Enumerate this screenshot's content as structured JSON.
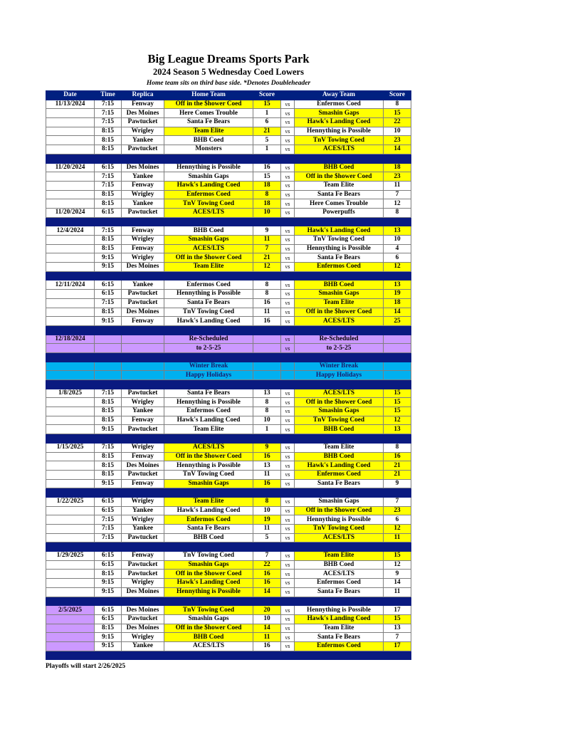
{
  "header": {
    "title": "Big League Dreams Sports Park",
    "subtitle": "2024 Season 5 Wednesday Coed Lowers",
    "note": "Home team sits on third base side.  *Denotes Doubleheader"
  },
  "columns": [
    "Date",
    "Time",
    "Replica",
    "Home Team",
    "Score",
    "",
    "Away Team",
    "Score"
  ],
  "vs_label": "vs",
  "colors": {
    "header": "#002080",
    "separator": "#0a1a80",
    "winner": "#ffff00",
    "rescheduled": "#cc99ff",
    "winter": "#00b0f0"
  },
  "sections": [
    {
      "type": "games",
      "games": [
        {
          "date": "11/13/2024",
          "time": "7:15",
          "replica": "Fenway",
          "home": "Off in the $hower Coed",
          "home_score": "15",
          "away": "Enfermos Coed",
          "away_score": "8",
          "winner": "home"
        },
        {
          "date": "",
          "time": "7:15",
          "replica": "Des Moines",
          "home": "Here Comes Trouble",
          "home_score": "1",
          "away": "Smashin Gaps",
          "away_score": "15",
          "winner": "away"
        },
        {
          "date": "",
          "time": "7:15",
          "replica": "Pawtucket",
          "home": "Santa Fe Bears",
          "home_score": "6",
          "away": "Hawk's Landing Coed",
          "away_score": "22",
          "winner": "away"
        },
        {
          "date": "",
          "time": "8:15",
          "replica": "Wrigley",
          "home": "Team Elite",
          "home_score": "21",
          "away": "Hennything is Possible",
          "away_score": "10",
          "winner": "home"
        },
        {
          "date": "",
          "time": "8:15",
          "replica": "Yankee",
          "home": "BHB Coed",
          "home_score": "5",
          "away": "TnV Towing Coed",
          "away_score": "23",
          "winner": "away"
        },
        {
          "date": "",
          "time": "8:15",
          "replica": "Pawtucket",
          "home": "Monsters",
          "home_score": "1",
          "away": "ACES/LTS",
          "away_score": "14",
          "winner": "away"
        }
      ]
    },
    {
      "type": "games",
      "games": [
        {
          "date": "11/20/2024",
          "time": "6:15",
          "replica": "Des Moines",
          "home": "Hennything is Possible",
          "home_score": "16",
          "away": "BHB Coed",
          "away_score": "18",
          "winner": "away"
        },
        {
          "date": "",
          "time": "7:15",
          "replica": "Yankee",
          "home": "Smashin Gaps",
          "home_score": "15",
          "away": "Off in the $hower Coed",
          "away_score": "23",
          "winner": "away"
        },
        {
          "date": "",
          "time": "7:15",
          "replica": "Fenway",
          "home": "Hawk's Landing Coed",
          "home_score": "18",
          "away": "Team Elite",
          "away_score": "11",
          "winner": "home"
        },
        {
          "date": "",
          "time": "8:15",
          "replica": "Wrigley",
          "home": "Enfermos Coed",
          "home_score": "8",
          "away": "Santa Fe Bears",
          "away_score": "7",
          "winner": "home"
        },
        {
          "date": "",
          "time": "8:15",
          "replica": "Yankee",
          "home": "TnV Towing Coed",
          "home_score": "18",
          "away": "Here Comes Trouble",
          "away_score": "12",
          "winner": "home"
        },
        {
          "date": "11/20/2024",
          "time": "6:15",
          "replica": "Pawtucket",
          "home": "ACES/LTS",
          "home_score": "10",
          "away": "Powerpuffs",
          "away_score": "8",
          "winner": "home"
        }
      ]
    },
    {
      "type": "games",
      "games": [
        {
          "date": "12/4/2024",
          "time": "7:15",
          "replica": "Fenway",
          "home": "BHB Coed",
          "home_score": "9",
          "away": "Hawk's Landing Coed",
          "away_score": "13",
          "winner": "away"
        },
        {
          "date": "",
          "time": "8:15",
          "replica": "Wrigley",
          "home": "Smashin Gaps",
          "home_score": "11",
          "away": "TnV Towing Coed",
          "away_score": "10",
          "winner": "home"
        },
        {
          "date": "",
          "time": "8:15",
          "replica": "Fenway",
          "home": "ACES/LTS",
          "home_score": "7",
          "away": "Hennything is Possible",
          "away_score": "4",
          "winner": "home"
        },
        {
          "date": "",
          "time": "9:15",
          "replica": "Wrigley",
          "home": "Off in the $hower Coed",
          "home_score": "21",
          "away": "Santa Fe Bears",
          "away_score": "6",
          "winner": "home"
        },
        {
          "date": "",
          "time": "9:15",
          "replica": "Des Moines",
          "home": "Team Elite",
          "home_score": "12",
          "away": "Enfermos Coed",
          "away_score": "12",
          "winner": "both"
        }
      ]
    },
    {
      "type": "games",
      "games": [
        {
          "date": "12/11/2024",
          "time": "6:15",
          "replica": "Yankee",
          "home": "Enfermos Coed",
          "home_score": "8",
          "away": "BHB Coed",
          "away_score": "13",
          "winner": "away"
        },
        {
          "date": "",
          "time": "6:15",
          "replica": "Pawtucket",
          "home": "Hennything is Possible",
          "home_score": "8",
          "away": "Smashin Gaps",
          "away_score": "19",
          "winner": "away"
        },
        {
          "date": "",
          "time": "7:15",
          "replica": "Pawtucket",
          "home": "Santa Fe Bears",
          "home_score": "16",
          "away": "Team Elite",
          "away_score": "18",
          "winner": "away"
        },
        {
          "date": "",
          "time": "8:15",
          "replica": "Des Moines",
          "home": "TnV Towing Coed",
          "home_score": "11",
          "away": "Off in the $hower Coed",
          "away_score": "14",
          "winner": "away"
        },
        {
          "date": "",
          "time": "9:15",
          "replica": "Fenway",
          "home": "Hawk's Landing Coed",
          "home_score": "16",
          "away": "ACES/LTS",
          "away_score": "25",
          "winner": "away"
        }
      ]
    },
    {
      "type": "rescheduled",
      "rows": [
        {
          "date": "12/18/2024",
          "home": "Re-Scheduled",
          "away": "Re-Scheduled",
          "vs": "vs"
        },
        {
          "date": "",
          "home": "to 2-5-25",
          "away": "to 2-5-25",
          "vs": "vs"
        }
      ]
    },
    {
      "type": "winter",
      "rows": [
        {
          "date": "",
          "home": "Winter Break",
          "away": "Winter Break",
          "vs": ""
        },
        {
          "date": "",
          "home": "Happy Holidays",
          "away": "Happy Holidays",
          "vs": ""
        }
      ]
    },
    {
      "type": "games",
      "games": [
        {
          "date": "1/8/2025",
          "time": "7:15",
          "replica": "Pawtucket",
          "home": "Santa Fe Bears",
          "home_score": "13",
          "away": "ACES/LTS",
          "away_score": "15",
          "winner": "away"
        },
        {
          "date": "",
          "time": "8:15",
          "replica": "Wrigley",
          "home": "Hennything is Possible",
          "home_score": "8",
          "away": "Off in the $hower Coed",
          "away_score": "15",
          "winner": "away"
        },
        {
          "date": "",
          "time": "8:15",
          "replica": "Yankee",
          "home": "Enfermos Coed",
          "home_score": "8",
          "away": "Smashin Gaps",
          "away_score": "15",
          "winner": "away"
        },
        {
          "date": "",
          "time": "8:15",
          "replica": "Fenway",
          "home": "Hawk's Landing Coed",
          "home_score": "10",
          "away": "TnV Towing Coed",
          "away_score": "12",
          "winner": "away"
        },
        {
          "date": "",
          "time": "9:15",
          "replica": "Pawtucket",
          "home": "Team Elite",
          "home_score": "1",
          "away": "BHB Coed",
          "away_score": "13",
          "winner": "away"
        }
      ]
    },
    {
      "type": "games",
      "games": [
        {
          "date": "1/15/2025",
          "time": "7:15",
          "replica": "Wrigley",
          "home": "ACES/LTS",
          "home_score": "9",
          "away": "Team Elite",
          "away_score": "8",
          "winner": "home"
        },
        {
          "date": "",
          "time": "8:15",
          "replica": "Fenway",
          "home": "Off in the $hower Coed",
          "home_score": "16",
          "away": "BHB Coed",
          "away_score": "16",
          "winner": "both"
        },
        {
          "date": "",
          "time": "8:15",
          "replica": "Des Moines",
          "home": "Hennything is Possible",
          "home_score": "13",
          "away": "Hawk's Landing Coed",
          "away_score": "21",
          "winner": "away"
        },
        {
          "date": "",
          "time": "8:15",
          "replica": "Pawtucket",
          "home": "TnV Towing Coed",
          "home_score": "11",
          "away": "Enfermos Coed",
          "away_score": "21",
          "winner": "away"
        },
        {
          "date": "",
          "time": "9:15",
          "replica": "Fenway",
          "home": "Smashin Gaps",
          "home_score": "16",
          "away": "Santa Fe Bears",
          "away_score": "9",
          "winner": "home"
        }
      ]
    },
    {
      "type": "games",
      "games": [
        {
          "date": "1/22/2025",
          "time": "6:15",
          "replica": "Wrigley",
          "home": "Team Elite",
          "home_score": "8",
          "away": "Smashin Gaps",
          "away_score": "7",
          "winner": "home"
        },
        {
          "date": "",
          "time": "6:15",
          "replica": "Yankee",
          "home": "Hawk's Landing Coed",
          "home_score": "10",
          "away": "Off in the $hower Coed",
          "away_score": "23",
          "winner": "away"
        },
        {
          "date": "",
          "time": "7:15",
          "replica": "Wrigley",
          "home": "Enfermos Coed",
          "home_score": "19",
          "away": "Hennything is Possible",
          "away_score": "6",
          "winner": "home"
        },
        {
          "date": "",
          "time": "7:15",
          "replica": "Yankee",
          "home": "Santa Fe Bears",
          "home_score": "11",
          "away": "TnV Towing Coed",
          "away_score": "12",
          "winner": "away"
        },
        {
          "date": "",
          "time": "7:15",
          "replica": "Pawtucket",
          "home": "BHB Coed",
          "home_score": "5",
          "away": "ACES/LTS",
          "away_score": "11",
          "winner": "away"
        }
      ]
    },
    {
      "type": "games",
      "games": [
        {
          "date": "1/29/2025",
          "time": "6:15",
          "replica": "Fenway",
          "home": "TnV Towing Coed",
          "home_score": "7",
          "away": "Team Elite",
          "away_score": "15",
          "winner": "away"
        },
        {
          "date": "",
          "time": "6:15",
          "replica": "Pawtucket",
          "home": "Smashin Gaps",
          "home_score": "22",
          "away": "BHB Coed",
          "away_score": "12",
          "winner": "home"
        },
        {
          "date": "",
          "time": "8:15",
          "replica": "Pawtucket",
          "home": "Off in the $hower Coed",
          "home_score": "16",
          "away": "ACES/LTS",
          "away_score": "9",
          "winner": "home"
        },
        {
          "date": "",
          "time": "9:15",
          "replica": "Wrigley",
          "home": "Hawk's Landing Coed",
          "home_score": "16",
          "away": "Enfermos Coed",
          "away_score": "14",
          "winner": "home"
        },
        {
          "date": "",
          "time": "9:15",
          "replica": "Des Moines",
          "home": "Hennything is Possible",
          "home_score": "14",
          "away": "Santa Fe Bears",
          "away_score": "11",
          "winner": "home"
        }
      ]
    },
    {
      "type": "games",
      "date_highlight": true,
      "games": [
        {
          "date": "2/5/2025",
          "time": "6:15",
          "replica": "Des Moines",
          "home": "TnV Towing Coed",
          "home_score": "20",
          "away": "Hennything is Possible",
          "away_score": "17",
          "winner": "home"
        },
        {
          "date": "",
          "time": "6:15",
          "replica": "Pawtucket",
          "home": "Smashin Gaps",
          "home_score": "10",
          "away": "Hawk's Landing Coed",
          "away_score": "15",
          "winner": "away"
        },
        {
          "date": "",
          "time": "8:15",
          "replica": "Des Moines",
          "home": "Off in the $hower Coed",
          "home_score": "14",
          "away": "Team Elite",
          "away_score": "13",
          "winner": "home"
        },
        {
          "date": "",
          "time": "9:15",
          "replica": "Wrigley",
          "home": "BHB Coed",
          "home_score": "11",
          "away": "Santa Fe Bears",
          "away_score": "7",
          "winner": "home"
        },
        {
          "date": "",
          "time": "9:15",
          "replica": "Yankee",
          "home": "ACES/LTS",
          "home_score": "16",
          "away": "Enfermos Coed",
          "away_score": "17",
          "winner": "away"
        }
      ]
    }
  ],
  "footer": "Playoffs will start 2/26/2025"
}
